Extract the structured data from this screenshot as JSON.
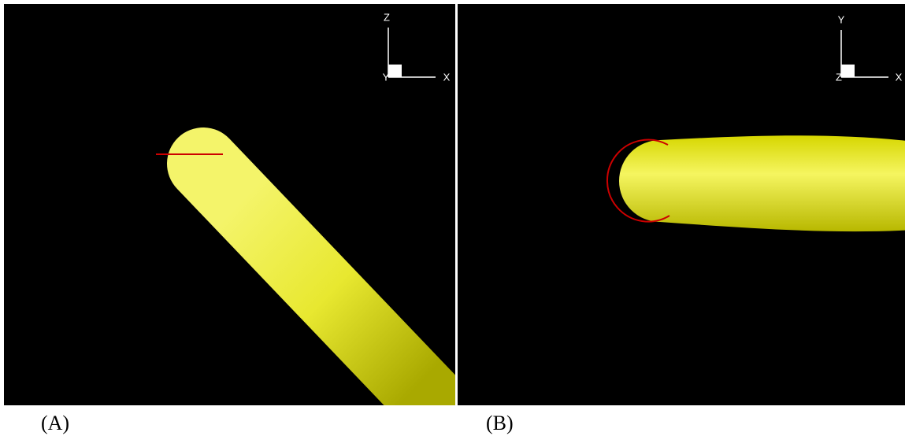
{
  "panels": [
    {
      "label": "(A)",
      "axes": {
        "up": "Z",
        "depth": "Y",
        "right": "X"
      }
    },
    {
      "label": "(B)",
      "axes": {
        "up": "Y",
        "depth": "Z",
        "right": "X"
      }
    }
  ]
}
